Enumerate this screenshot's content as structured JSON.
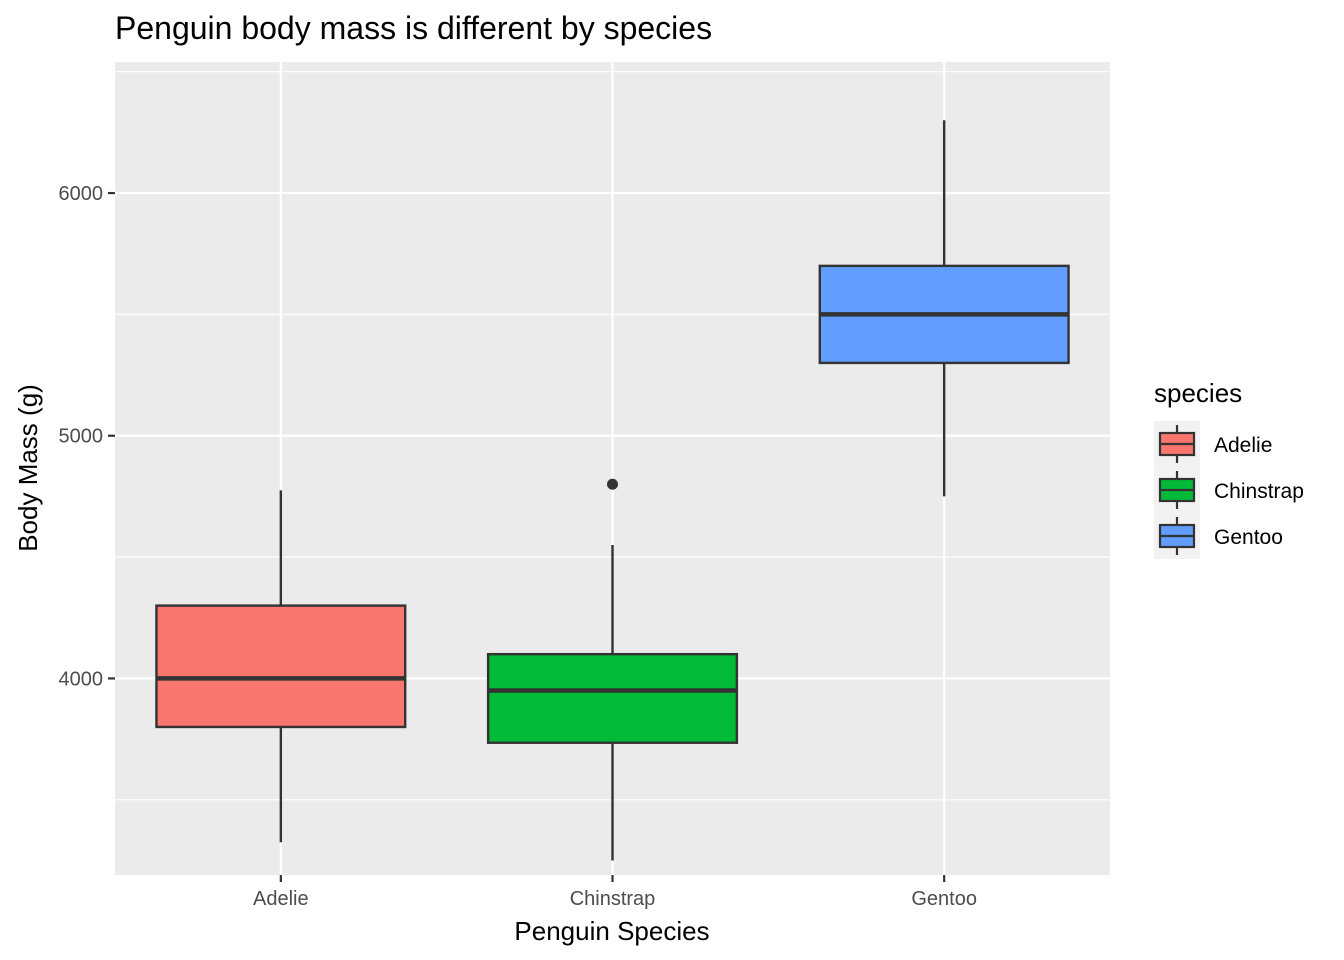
{
  "chart_data": {
    "type": "boxplot",
    "title": "Penguin body mass is different by species",
    "xlabel": "Penguin Species",
    "ylabel": "Body Mass (g)",
    "ylim": [
      3190,
      6540
    ],
    "y_ticks": [
      4000,
      5000,
      6000
    ],
    "y_tick_labels": [
      "4000",
      "5000",
      "6000"
    ],
    "categories": [
      "Adelie",
      "Chinstrap",
      "Gentoo"
    ],
    "grid": true,
    "legend": {
      "title": "species",
      "position": "right",
      "entries": [
        "Adelie",
        "Chinstrap",
        "Gentoo"
      ]
    },
    "series": [
      {
        "name": "Adelie",
        "color": "#F8766D",
        "whisker_low": 3325,
        "q1": 3800,
        "median": 4000,
        "q3": 4300,
        "whisker_high": 4775,
        "outliers": []
      },
      {
        "name": "Chinstrap",
        "color": "#00BA38",
        "whisker_low": 3250,
        "q1": 3735,
        "median": 3950,
        "q3": 4100,
        "whisker_high": 4550,
        "outliers": [
          4800
        ]
      },
      {
        "name": "Gentoo",
        "color": "#619CFF",
        "whisker_low": 4750,
        "q1": 5300,
        "median": 5500,
        "q3": 5700,
        "whisker_high": 6300,
        "outliers": []
      }
    ]
  }
}
